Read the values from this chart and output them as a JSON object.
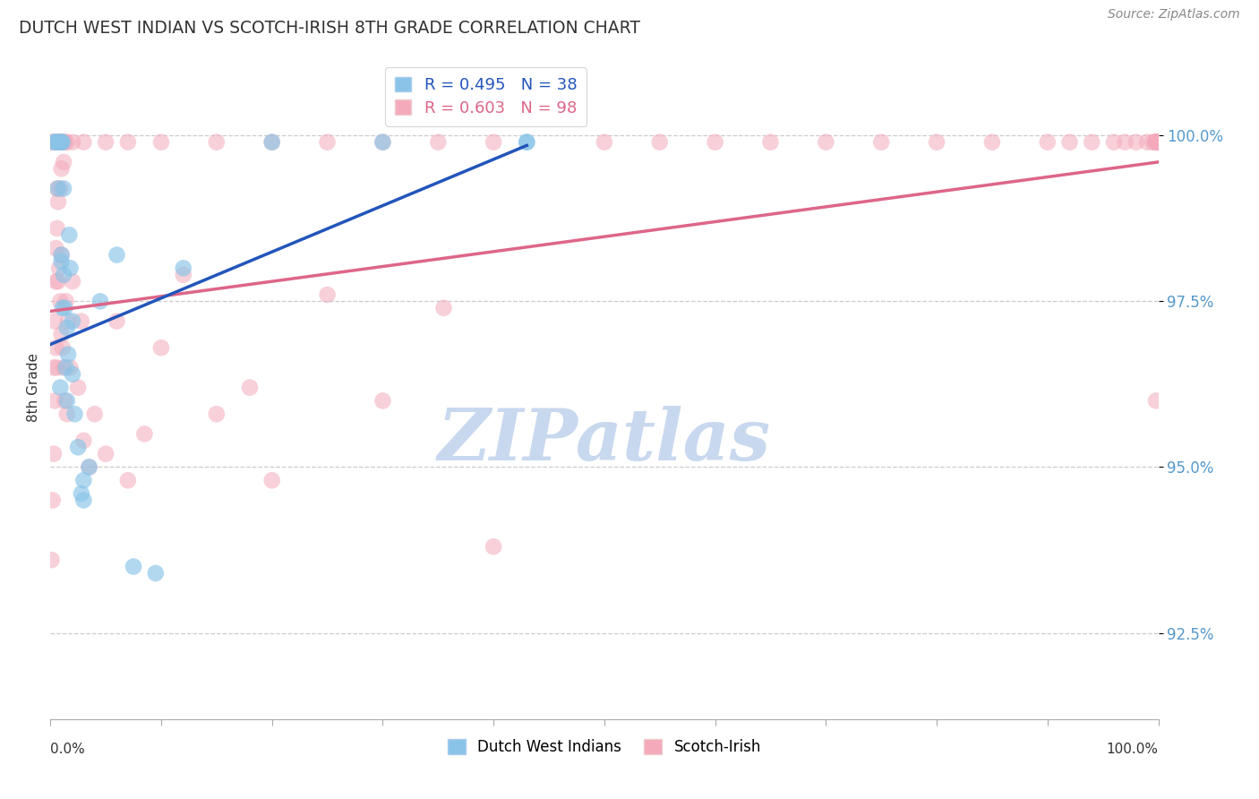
{
  "title": "DUTCH WEST INDIAN VS SCOTCH-IRISH 8TH GRADE CORRELATION CHART",
  "source_text": "Source: ZipAtlas.com",
  "ylabel": "8th Grade",
  "ytick_values": [
    92.5,
    95.0,
    97.5,
    100.0
  ],
  "xlim": [
    0.0,
    100.0
  ],
  "ylim": [
    91.2,
    101.2
  ],
  "blue_R": 0.495,
  "blue_N": 38,
  "pink_R": 0.603,
  "pink_N": 98,
  "legend_blue_label": "Dutch West Indians",
  "legend_pink_label": "Scotch-Irish",
  "blue_color": "#89C4E8",
  "pink_color": "#F4AABB",
  "blue_line_color": "#2255BB",
  "pink_line_color": "#DD6688",
  "watermark_color": "#C8D8EE",
  "background_color": "#FFFFFF",
  "blue_line_x0": 0.0,
  "blue_line_y0": 96.85,
  "blue_line_x1": 43.0,
  "blue_line_y1": 99.85,
  "pink_line_x0": 0.0,
  "pink_line_y0": 97.35,
  "pink_line_x1": 100.0,
  "pink_line_y1": 99.6,
  "blue_x": [
    0.5,
    0.6,
    0.8,
    0.9,
    1.0,
    1.0,
    1.1,
    1.1,
    1.2,
    1.3,
    1.4,
    1.5,
    1.6,
    1.7,
    1.8,
    2.0,
    2.2,
    2.5,
    2.8,
    3.0,
    3.5,
    4.5,
    6.0,
    7.5,
    9.5,
    12.0,
    0.7,
    0.9,
    1.0,
    1.2,
    1.5,
    2.0,
    3.0,
    20.0,
    30.0,
    43.0,
    43.0,
    0.3
  ],
  "blue_y": [
    99.9,
    99.9,
    99.9,
    99.9,
    99.9,
    98.1,
    97.4,
    99.9,
    97.9,
    97.4,
    96.5,
    97.1,
    96.7,
    98.5,
    98.0,
    96.4,
    95.8,
    95.3,
    94.6,
    94.5,
    95.0,
    97.5,
    98.2,
    93.5,
    93.4,
    98.0,
    99.2,
    96.2,
    98.2,
    99.2,
    96.0,
    97.2,
    94.8,
    99.9,
    99.9,
    99.9,
    99.9,
    99.9
  ],
  "pink_x": [
    0.1,
    0.2,
    0.3,
    0.3,
    0.4,
    0.4,
    0.5,
    0.5,
    0.5,
    0.6,
    0.6,
    0.6,
    0.7,
    0.7,
    0.8,
    0.8,
    0.9,
    0.9,
    1.0,
    1.0,
    1.0,
    1.1,
    1.2,
    1.2,
    1.3,
    1.4,
    1.5,
    1.6,
    1.8,
    2.0,
    2.5,
    2.8,
    3.0,
    3.5,
    4.0,
    5.0,
    6.0,
    7.0,
    8.5,
    10.0,
    12.0,
    15.0,
    18.0,
    20.0,
    25.0,
    30.0,
    35.5,
    40.0,
    99.8,
    0.2,
    0.3,
    0.4,
    0.5,
    0.6,
    0.7,
    0.8,
    0.9,
    1.0,
    1.1,
    1.2,
    1.3,
    1.5,
    2.0,
    3.0,
    5.0,
    7.0,
    10.0,
    15.0,
    20.0,
    25.0,
    30.0,
    35.0,
    40.0,
    50.0,
    55.0,
    60.0,
    65.0,
    70.0,
    75.0,
    80.0,
    85.0,
    90.0,
    92.0,
    94.0,
    96.0,
    97.0,
    98.0,
    99.0,
    99.5,
    99.8,
    99.8,
    99.8,
    99.8,
    99.8,
    99.8,
    99.8,
    99.8,
    99.8
  ],
  "pink_y": [
    93.6,
    94.5,
    96.5,
    95.2,
    97.2,
    96.0,
    97.8,
    98.3,
    96.8,
    98.6,
    96.5,
    99.2,
    97.8,
    99.0,
    98.0,
    99.9,
    97.5,
    99.2,
    97.0,
    98.2,
    99.5,
    96.8,
    96.5,
    99.6,
    96.0,
    97.5,
    95.8,
    97.2,
    96.5,
    97.8,
    96.2,
    97.2,
    95.4,
    95.0,
    95.8,
    95.2,
    97.2,
    94.8,
    95.5,
    96.8,
    97.9,
    95.8,
    96.2,
    94.8,
    97.6,
    96.0,
    97.4,
    93.8,
    96.0,
    99.9,
    99.9,
    99.9,
    99.9,
    99.9,
    99.9,
    99.9,
    99.9,
    99.9,
    99.9,
    99.9,
    99.9,
    99.9,
    99.9,
    99.9,
    99.9,
    99.9,
    99.9,
    99.9,
    99.9,
    99.9,
    99.9,
    99.9,
    99.9,
    99.9,
    99.9,
    99.9,
    99.9,
    99.9,
    99.9,
    99.9,
    99.9,
    99.9,
    99.9,
    99.9,
    99.9,
    99.9,
    99.9,
    99.9,
    99.9,
    99.9,
    99.9,
    99.9,
    99.9,
    99.9,
    99.9,
    99.9,
    99.9,
    99.9
  ]
}
